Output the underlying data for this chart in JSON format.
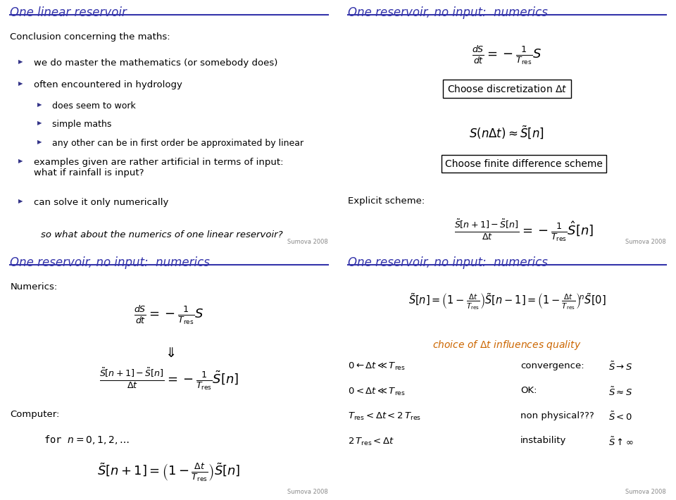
{
  "bg_color": "#ffffff",
  "title_color": "#3333aa",
  "text_color": "#000000",
  "header_line_color": "#3333aa",
  "bullet_color": "#333388",
  "footer_text": "Sumova 2008",
  "panels": {
    "top_left": {
      "title": "One linear reservoir",
      "intro": "Conclusion concerning the maths:",
      "bullets": [
        {
          "level": 1,
          "text": "we do master the mathematics (or somebody does)"
        },
        {
          "level": 1,
          "text": "often encountered in hydrology"
        },
        {
          "level": 2,
          "text": "does seem to work"
        },
        {
          "level": 2,
          "text": "simple maths"
        },
        {
          "level": 2,
          "text": "any other can be in first order be approximated by linear"
        },
        {
          "level": 1,
          "text": "examples given are rather artificial in terms of input:\nwhat if rainfall is input?"
        },
        {
          "level": 1,
          "text": "can solve it only numerically"
        }
      ],
      "italic_line": "so what about the numerics of one linear reservoir?"
    },
    "top_right": {
      "title": "One reservoir, no input:  numerics"
    },
    "bottom_left": {
      "title": "One reservoir, no input:  numerics"
    },
    "bottom_right": {
      "title": "One reservoir, no input:  numerics"
    }
  }
}
